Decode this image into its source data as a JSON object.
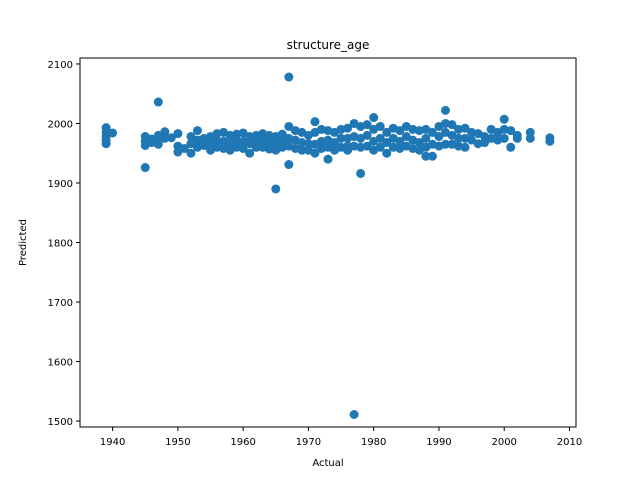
{
  "chart_data": {
    "type": "scatter",
    "title": "structure_age",
    "xlabel": "Actual",
    "ylabel": "Predicted",
    "xlim": [
      1935,
      2011
    ],
    "ylim": [
      1490,
      2110
    ],
    "xticks": [
      1940,
      1950,
      1960,
      1970,
      1980,
      1990,
      2000,
      2010
    ],
    "yticks": [
      1500,
      1600,
      1700,
      1800,
      1900,
      2000,
      2100
    ],
    "grid": false,
    "legend": "none",
    "colors": {
      "marker": "#1f77b4"
    },
    "series": [
      {
        "x": [
          1939,
          1939,
          1939,
          1939,
          1939,
          1940,
          1945,
          1945,
          1945,
          1946,
          1946,
          1947,
          1947,
          1947,
          1948,
          1948,
          1949,
          1950,
          1950,
          1950,
          1951,
          1952,
          1952,
          1952,
          1953,
          1953,
          1953,
          1954,
          1954,
          1955,
          1955,
          1955,
          1956,
          1956,
          1956,
          1957,
          1957,
          1957,
          1958,
          1958,
          1958,
          1959,
          1959,
          1959,
          1960,
          1960,
          1960,
          1961,
          1961,
          1961,
          1962,
          1962,
          1962,
          1963,
          1963,
          1963,
          1964,
          1964,
          1964,
          1965,
          1965,
          1965,
          1966,
          1966,
          1966,
          1967,
          1967,
          1967,
          1968,
          1968,
          1968,
          1969,
          1969,
          1969,
          1970,
          1970,
          1970,
          1971,
          1971,
          1971,
          1971,
          1972,
          1972,
          1972,
          1973,
          1973,
          1973,
          1974,
          1974,
          1974,
          1975,
          1975,
          1975,
          1976,
          1976,
          1976,
          1976,
          1977,
          1977,
          1977,
          1978,
          1978,
          1978,
          1979,
          1979,
          1979,
          1980,
          1980,
          1980,
          1980,
          1981,
          1981,
          1981,
          1982,
          1982,
          1982,
          1983,
          1983,
          1983,
          1984,
          1984,
          1984,
          1985,
          1985,
          1985,
          1986,
          1986,
          1986,
          1987,
          1987,
          1987,
          1988,
          1988,
          1988,
          1989,
          1989,
          1989,
          1990,
          1990,
          1990,
          1991,
          1991,
          1991,
          1992,
          1992,
          1992,
          1993,
          1993,
          1993,
          1994,
          1994,
          1994,
          1995,
          1995,
          1996,
          1996,
          1997,
          1997,
          1998,
          1998,
          1999,
          1999,
          2000,
          2000,
          2000,
          2001,
          2001,
          2002,
          2002,
          2004,
          2004,
          2007,
          2007,
          1947,
          1967,
          1991,
          1965,
          1967,
          1973,
          1978,
          1988,
          1977,
          1945
        ],
        "y": [
          1993,
          1985,
          1978,
          1972,
          1966,
          1984,
          1978,
          1963,
          1970,
          1974,
          1968,
          1980,
          1970,
          1965,
          1986,
          1975,
          1976,
          1983,
          1962,
          1952,
          1958,
          1978,
          1966,
          1950,
          1988,
          1972,
          1960,
          1975,
          1963,
          1978,
          1966,
          1955,
          1983,
          1971,
          1960,
          1985,
          1970,
          1958,
          1980,
          1968,
          1955,
          1982,
          1972,
          1960,
          1984,
          1970,
          1958,
          1978,
          1966,
          1950,
          1980,
          1970,
          1960,
          1983,
          1972,
          1960,
          1980,
          1968,
          1957,
          1978,
          1966,
          1955,
          1982,
          1970,
          1960,
          1995,
          1975,
          1962,
          1988,
          1972,
          1958,
          1985,
          1968,
          1955,
          1980,
          1966,
          1955,
          2003,
          1985,
          1965,
          1950,
          1990,
          1970,
          1958,
          1988,
          1972,
          1960,
          1985,
          1968,
          1955,
          1990,
          1975,
          1960,
          1992,
          1975,
          1962,
          1955,
          2000,
          1978,
          1962,
          1995,
          1975,
          1960,
          1998,
          1980,
          1962,
          2010,
          1990,
          1970,
          1955,
          1995,
          1975,
          1960,
          1985,
          1968,
          1950,
          1992,
          1975,
          1960,
          1988,
          1970,
          1958,
          1995,
          1978,
          1962,
          1990,
          1972,
          1958,
          1988,
          1968,
          1955,
          1990,
          1975,
          1960,
          1985,
          1965,
          1945,
          1995,
          1978,
          1962,
          2000,
          1985,
          1965,
          1998,
          1980,
          1965,
          1990,
          1975,
          1962,
          1992,
          1975,
          1960,
          1985,
          1972,
          1983,
          1966,
          1978,
          1968,
          1990,
          1975,
          1985,
          1972,
          2007,
          1990,
          1975,
          1988,
          1960,
          1980,
          1975,
          1985,
          1975,
          1976,
          1970,
          2036,
          2078,
          2022,
          1890,
          1931,
          1940,
          1916,
          1945,
          1511,
          1926
        ]
      }
    ]
  }
}
